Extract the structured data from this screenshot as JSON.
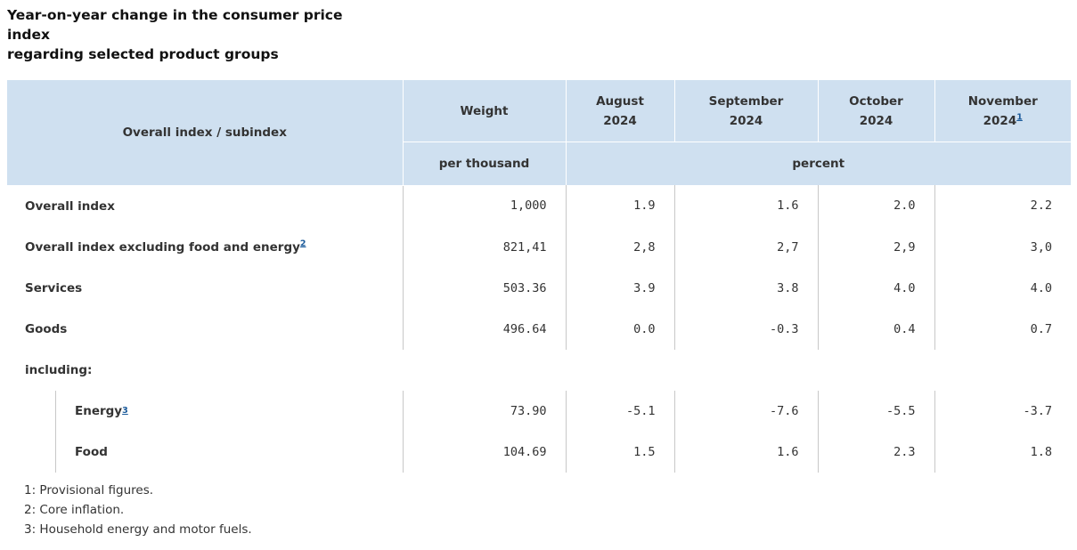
{
  "title_line1": "Year-on-year change in the consumer price index",
  "title_line2": "regarding selected product groups",
  "header": {
    "index_label": "Overall index / subindex",
    "weight": "Weight",
    "weight_unit": "per thousand",
    "percent_unit": "percent",
    "months": [
      {
        "month": "August",
        "year": "2024",
        "fn": ""
      },
      {
        "month": "September",
        "year": "2024",
        "fn": ""
      },
      {
        "month": "October",
        "year": "2024",
        "fn": ""
      },
      {
        "month": "November",
        "year": "2024",
        "fn": "1"
      }
    ]
  },
  "rows": [
    {
      "label": "Overall index",
      "fn": "",
      "weight": "1,000",
      "aug": "1.9",
      "sep": "1.6",
      "oct": "2.0",
      "nov": "2.2"
    },
    {
      "label": "Overall index excluding food and energy",
      "fn": "2",
      "weight": "821,41",
      "aug": "2,8",
      "sep": "2,7",
      "oct": "2,9",
      "nov": "3,0"
    },
    {
      "label": "Services",
      "fn": "",
      "weight": "503.36",
      "aug": "3.9",
      "sep": "3.8",
      "oct": "4.0",
      "nov": "4.0"
    },
    {
      "label": "Goods",
      "fn": "",
      "weight": "496.64",
      "aug": "0.0",
      "sep": "-0.3",
      "oct": "0.4",
      "nov": "0.7"
    }
  ],
  "including_label": "including:",
  "subrows": [
    {
      "label": "Energy",
      "fn": "3",
      "weight": "73.90",
      "aug": "-5.1",
      "sep": "-7.6",
      "oct": "-5.5",
      "nov": "-3.7"
    },
    {
      "label": "Food",
      "fn": "",
      "weight": "104.69",
      "aug": "1.5",
      "sep": "1.6",
      "oct": "2.3",
      "nov": "1.8"
    }
  ],
  "footnotes": [
    "1: Provisional figures.",
    "2: Core inflation.",
    "3: Household energy and motor fuels."
  ]
}
